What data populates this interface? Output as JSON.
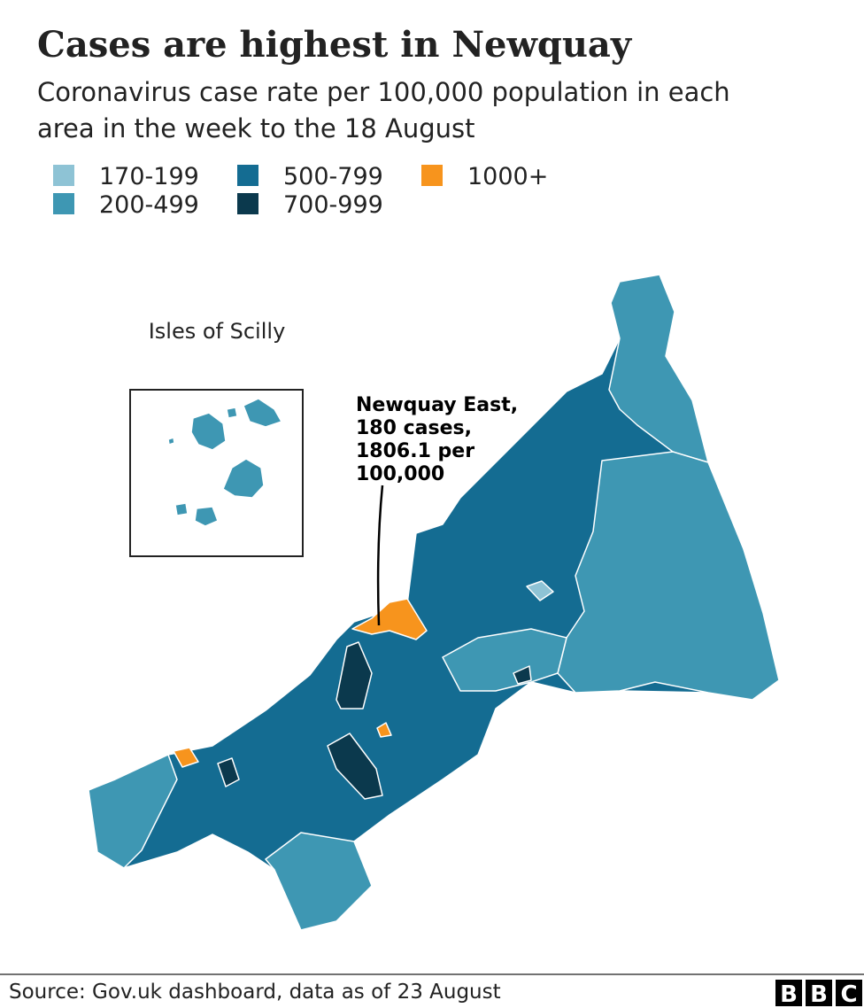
{
  "title": "Cases are highest in Newquay",
  "subtitle_lines": [
    "Coronavirus case rate per 100,000 population in each",
    "area in the week to the 18 August"
  ],
  "legend": [
    {
      "label": "170-199",
      "color": "#8ec3d5"
    },
    {
      "label": "200-499",
      "color": "#3e97b3"
    },
    {
      "label": "500-799",
      "color": "#146c92"
    },
    {
      "label": "700-999",
      "color": "#0b394d"
    },
    {
      "label": "1000+",
      "color": "#f7941d"
    }
  ],
  "inset_label": "Isles of Scilly",
  "annotation_lines": [
    "Newquay East,",
    "180 cases,",
    "1806.1 per",
    "100,000"
  ],
  "source": "Source: Gov.uk dashboard, data as of 23 August",
  "logo": [
    "B",
    "B",
    "C"
  ]
}
